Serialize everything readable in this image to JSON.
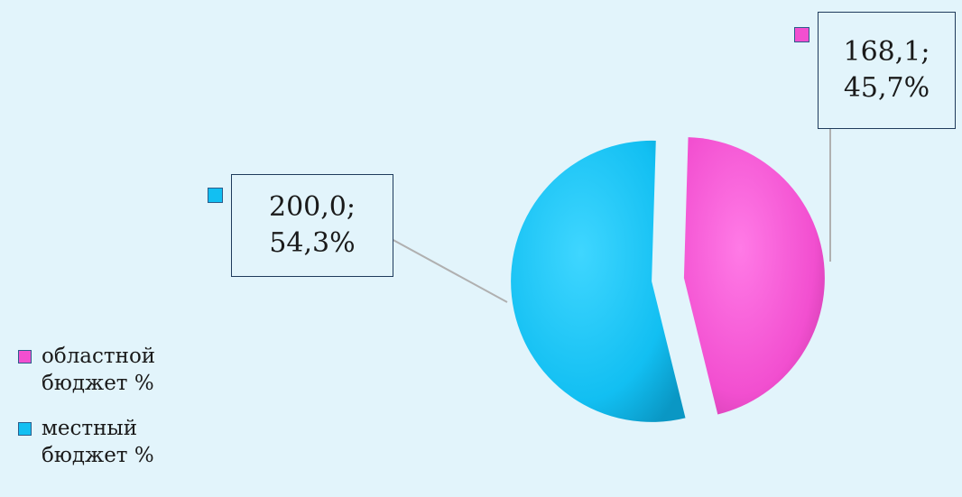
{
  "chart_data": {
    "type": "pie",
    "title": "",
    "slices": [
      {
        "label": "областной бюджет %",
        "value": 168.1,
        "percent": 45.7,
        "data_label": "168,1;\n45,7%",
        "color": "#f24fd0"
      },
      {
        "label": "местный бюджет %",
        "value": 200.0,
        "percent": 54.3,
        "data_label": "200,0;\n54,3%",
        "color": "#12bff2"
      }
    ],
    "legend": [
      "областной бюджет %",
      "местный бюджет %"
    ],
    "legend_position": "left"
  },
  "labels": {
    "regional_value": "168,1;",
    "regional_percent": "45,7%",
    "local_value": "200,0;",
    "local_percent": "54,3%"
  },
  "legend_items": {
    "regional": "областной бюджет %",
    "local": "местный бюджет %"
  }
}
